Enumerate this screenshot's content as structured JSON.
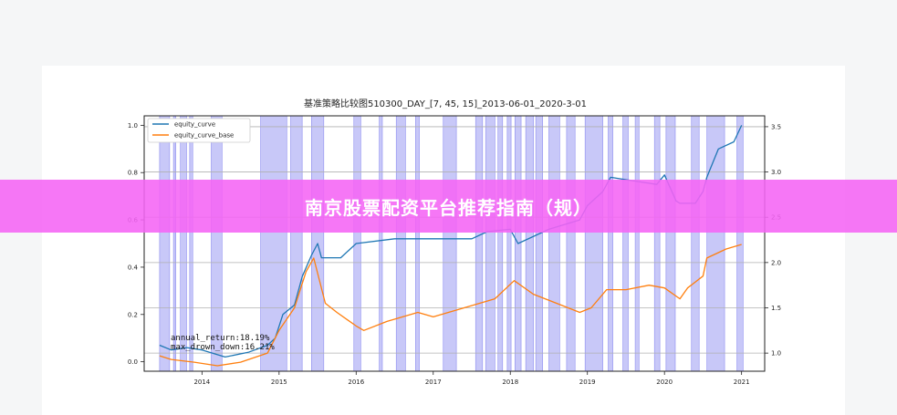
{
  "banner": {
    "text": "南京股票配资平台推荐指南（规）"
  },
  "colors": {
    "equity_curve": "#1f77b4",
    "equity_curve_base": "#ff7f0e",
    "position_band": "#b3b3f5",
    "banner": "#f564f5"
  },
  "chart_data": {
    "type": "line",
    "title": "基准策略比较图510300_DAY_[7, 45, 15]_2013-06-01_2020-3-01",
    "xlabel": "",
    "ylabel": "",
    "x_ticks": [
      "2014",
      "2015",
      "2016",
      "2017",
      "2018",
      "2019",
      "2020",
      "2021"
    ],
    "xlim": [
      2013.25,
      2021.3
    ],
    "y_left": {
      "lim": [
        -0.04,
        1.04
      ],
      "ticks": [
        0.0,
        0.2,
        0.4,
        0.6,
        0.8,
        1.0
      ]
    },
    "y_right": {
      "lim": [
        0.8,
        3.62
      ],
      "ticks": [
        1.0,
        1.5,
        2.0,
        2.5,
        3.0,
        3.5
      ]
    },
    "grid": true,
    "legend": {
      "placement": "top-left",
      "entries": [
        "equity_curve",
        "equity_curve_base"
      ]
    },
    "annotations": [
      "annual_return:18.19%",
      "max_drown_down:16.21%"
    ],
    "series": [
      {
        "name": "equity_curve",
        "axis": "left",
        "x": [
          2013.45,
          2013.6,
          2013.8,
          2014.0,
          2014.3,
          2014.6,
          2014.85,
          2014.95,
          2015.05,
          2015.2,
          2015.3,
          2015.42,
          2015.5,
          2015.55,
          2015.8,
          2016.0,
          2016.5,
          2017.0,
          2017.5,
          2017.7,
          2018.0,
          2018.1,
          2018.5,
          2018.9,
          2019.0,
          2019.2,
          2019.3,
          2019.5,
          2019.9,
          2020.0,
          2020.15,
          2020.2,
          2020.4,
          2020.5,
          2020.55,
          2020.7,
          2020.9,
          2021.0
        ],
        "y": [
          0.07,
          0.05,
          0.06,
          0.05,
          0.02,
          0.04,
          0.07,
          0.1,
          0.2,
          0.24,
          0.36,
          0.45,
          0.5,
          0.44,
          0.44,
          0.5,
          0.52,
          0.52,
          0.52,
          0.55,
          0.56,
          0.5,
          0.56,
          0.6,
          0.66,
          0.72,
          0.78,
          0.77,
          0.75,
          0.79,
          0.68,
          0.67,
          0.67,
          0.72,
          0.78,
          0.9,
          0.93,
          1.0
        ]
      },
      {
        "name": "equity_curve_base",
        "axis": "right",
        "x": [
          2013.45,
          2013.6,
          2013.9,
          2014.2,
          2014.5,
          2014.85,
          2015.0,
          2015.2,
          2015.35,
          2015.45,
          2015.6,
          2015.75,
          2016.0,
          2016.1,
          2016.4,
          2016.8,
          2017.0,
          2017.4,
          2017.8,
          2018.05,
          2018.3,
          2018.6,
          2018.9,
          2019.05,
          2019.25,
          2019.5,
          2019.8,
          2020.0,
          2020.2,
          2020.3,
          2020.5,
          2020.55,
          2020.8,
          2021.0
        ],
        "y": [
          0.97,
          0.93,
          0.9,
          0.86,
          0.9,
          1.0,
          1.25,
          1.5,
          1.9,
          2.05,
          1.55,
          1.45,
          1.3,
          1.25,
          1.35,
          1.45,
          1.4,
          1.5,
          1.6,
          1.8,
          1.65,
          1.55,
          1.45,
          1.5,
          1.7,
          1.7,
          1.75,
          1.72,
          1.6,
          1.72,
          1.85,
          2.05,
          2.15,
          2.2
        ]
      }
    ],
    "shaded_periods": [
      [
        2013.45,
        2013.58
      ],
      [
        2013.63,
        2013.66
      ],
      [
        2013.72,
        2013.8
      ],
      [
        2013.84,
        2013.88
      ],
      [
        2014.12,
        2014.26
      ],
      [
        2014.76,
        2015.1
      ],
      [
        2015.15,
        2015.3
      ],
      [
        2015.42,
        2015.58
      ],
      [
        2015.97,
        2016.06
      ],
      [
        2016.3,
        2016.34
      ],
      [
        2016.52,
        2016.64
      ],
      [
        2016.77,
        2016.82
      ],
      [
        2017.13,
        2017.3
      ],
      [
        2017.55,
        2017.64
      ],
      [
        2017.68,
        2017.8
      ],
      [
        2017.84,
        2017.9
      ],
      [
        2017.96,
        2018.01
      ],
      [
        2018.06,
        2018.14
      ],
      [
        2018.2,
        2018.3
      ],
      [
        2018.33,
        2018.42
      ],
      [
        2018.5,
        2018.64
      ],
      [
        2018.73,
        2018.84
      ],
      [
        2018.97,
        2019.2
      ],
      [
        2019.27,
        2019.33
      ],
      [
        2019.46,
        2019.53
      ],
      [
        2019.62,
        2019.67
      ],
      [
        2019.87,
        2019.94
      ],
      [
        2020.02,
        2020.14
      ],
      [
        2020.35,
        2020.45
      ],
      [
        2020.55,
        2020.78
      ],
      [
        2020.94,
        2021.02
      ]
    ]
  }
}
